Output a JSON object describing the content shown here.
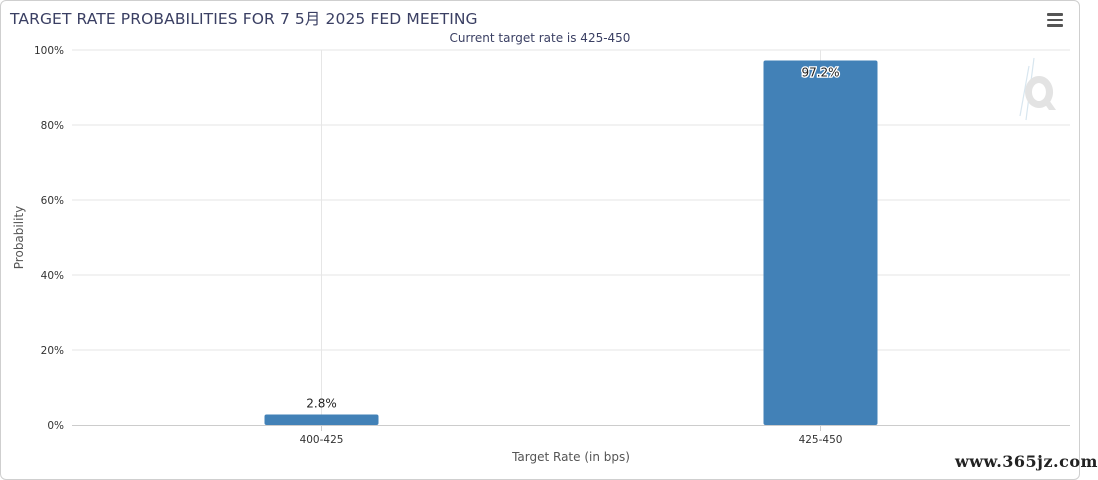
{
  "header": {
    "title": "TARGET RATE PROBABILITIES FOR 7 5月 2025 FED MEETING",
    "subtitle": "Current target rate is 425-450",
    "menu_icon": "hamburger-menu-icon"
  },
  "watermark_text": "www.365jz.com",
  "colors": {
    "bar": "#4281b7",
    "title": "#3a3f63",
    "grid": "#e6e6e6"
  },
  "chart_data": {
    "type": "bar",
    "title": "TARGET RATE PROBABILITIES FOR 7 5月 2025 FED MEETING",
    "subtitle": "Current target rate is 425-450",
    "categories": [
      "400-425",
      "425-450"
    ],
    "values": [
      2.8,
      97.2
    ],
    "value_labels": [
      "2.8%",
      "97.2%"
    ],
    "xlabel": "Target Rate (in bps)",
    "ylabel": "Probability",
    "ylim": [
      0,
      100
    ],
    "yticks": [
      0,
      20,
      40,
      60,
      80,
      100
    ],
    "ytick_labels": [
      "0%",
      "20%",
      "40%",
      "60%",
      "80%",
      "100%"
    ],
    "grid": true,
    "legend": "none"
  }
}
